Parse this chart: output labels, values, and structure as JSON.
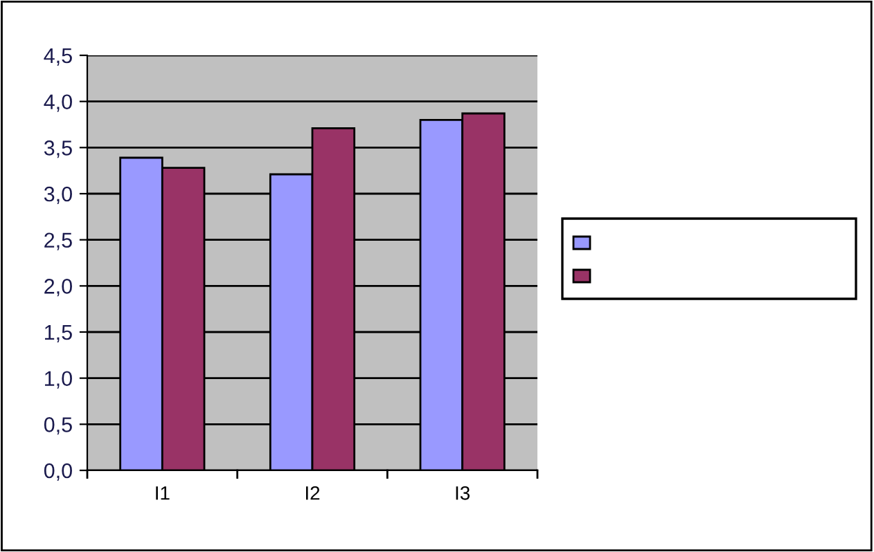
{
  "chart_data": {
    "type": "bar",
    "categories": [
      "I1",
      "I2",
      "I3"
    ],
    "series": [
      {
        "color": "#9999ff",
        "values": [
          3.39,
          3.21,
          3.8
        ]
      },
      {
        "color": "#993366",
        "values": [
          3.28,
          3.71,
          3.87
        ]
      }
    ],
    "ylim": [
      0,
      4.5
    ],
    "yticks": [
      {
        "value": 0,
        "label": "0,0"
      },
      {
        "value": 0.5,
        "label": "0,5"
      },
      {
        "value": 1,
        "label": "1,0"
      },
      {
        "value": 1.5,
        "label": "1,5"
      },
      {
        "value": 2,
        "label": "2,0"
      },
      {
        "value": 2.5,
        "label": "2,5"
      },
      {
        "value": 3,
        "label": "3,0"
      },
      {
        "value": 3.5,
        "label": "3,5"
      },
      {
        "value": 4,
        "label": "4,0"
      },
      {
        "value": 4.5,
        "label": "4,5"
      }
    ],
    "grid": "y"
  }
}
